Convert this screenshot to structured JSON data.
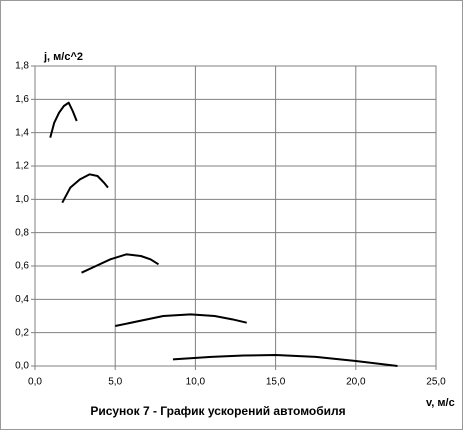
{
  "chart_data": {
    "type": "line",
    "title": "Рисунок 7 - График ускорений автомобиля",
    "y_label": "j, м/с^2",
    "x_label": "v, м/с",
    "xlim": [
      0,
      25
    ],
    "ylim": [
      0,
      1.8
    ],
    "xticks": [
      {
        "value": 0,
        "label": "0,0"
      },
      {
        "value": 5,
        "label": "5,0"
      },
      {
        "value": 10,
        "label": "10,0"
      },
      {
        "value": 15,
        "label": "15,0"
      },
      {
        "value": 20,
        "label": "20,0"
      },
      {
        "value": 25,
        "label": "25,0"
      }
    ],
    "yticks": [
      {
        "value": 0,
        "label": "0,0"
      },
      {
        "value": 0.2,
        "label": "0,2"
      },
      {
        "value": 0.4,
        "label": "0,4"
      },
      {
        "value": 0.6,
        "label": "0,6"
      },
      {
        "value": 0.8,
        "label": "0,8"
      },
      {
        "value": 1.0,
        "label": "1,0"
      },
      {
        "value": 1.2,
        "label": "1,2"
      },
      {
        "value": 1.4,
        "label": "1,4"
      },
      {
        "value": 1.6,
        "label": "1,6"
      },
      {
        "value": 1.8,
        "label": "1,8"
      }
    ],
    "grid": true,
    "series": [
      {
        "color": "#000000",
        "x": [
          0.95,
          1.2,
          1.5,
          1.8,
          2.1,
          2.35,
          2.6
        ],
        "values": [
          1.37,
          1.46,
          1.52,
          1.56,
          1.58,
          1.53,
          1.47
        ]
      },
      {
        "color": "#000000",
        "x": [
          1.7,
          2.2,
          2.8,
          3.4,
          3.9,
          4.3,
          4.55
        ],
        "values": [
          0.98,
          1.07,
          1.12,
          1.15,
          1.14,
          1.1,
          1.07
        ]
      },
      {
        "color": "#000000",
        "x": [
          2.9,
          3.8,
          4.7,
          5.7,
          6.6,
          7.2,
          7.7
        ],
        "values": [
          0.56,
          0.6,
          0.64,
          0.67,
          0.66,
          0.64,
          0.61
        ]
      },
      {
        "color": "#000000",
        "x": [
          5.0,
          6.5,
          8.0,
          9.7,
          11.2,
          12.3,
          13.2
        ],
        "values": [
          0.24,
          0.27,
          0.3,
          0.31,
          0.3,
          0.28,
          0.26
        ]
      },
      {
        "color": "#000000",
        "x": [
          8.6,
          11.0,
          13.0,
          15.0,
          17.5,
          20.0,
          22.6
        ],
        "values": [
          0.04,
          0.055,
          0.063,
          0.066,
          0.055,
          0.03,
          0.0
        ]
      }
    ]
  }
}
